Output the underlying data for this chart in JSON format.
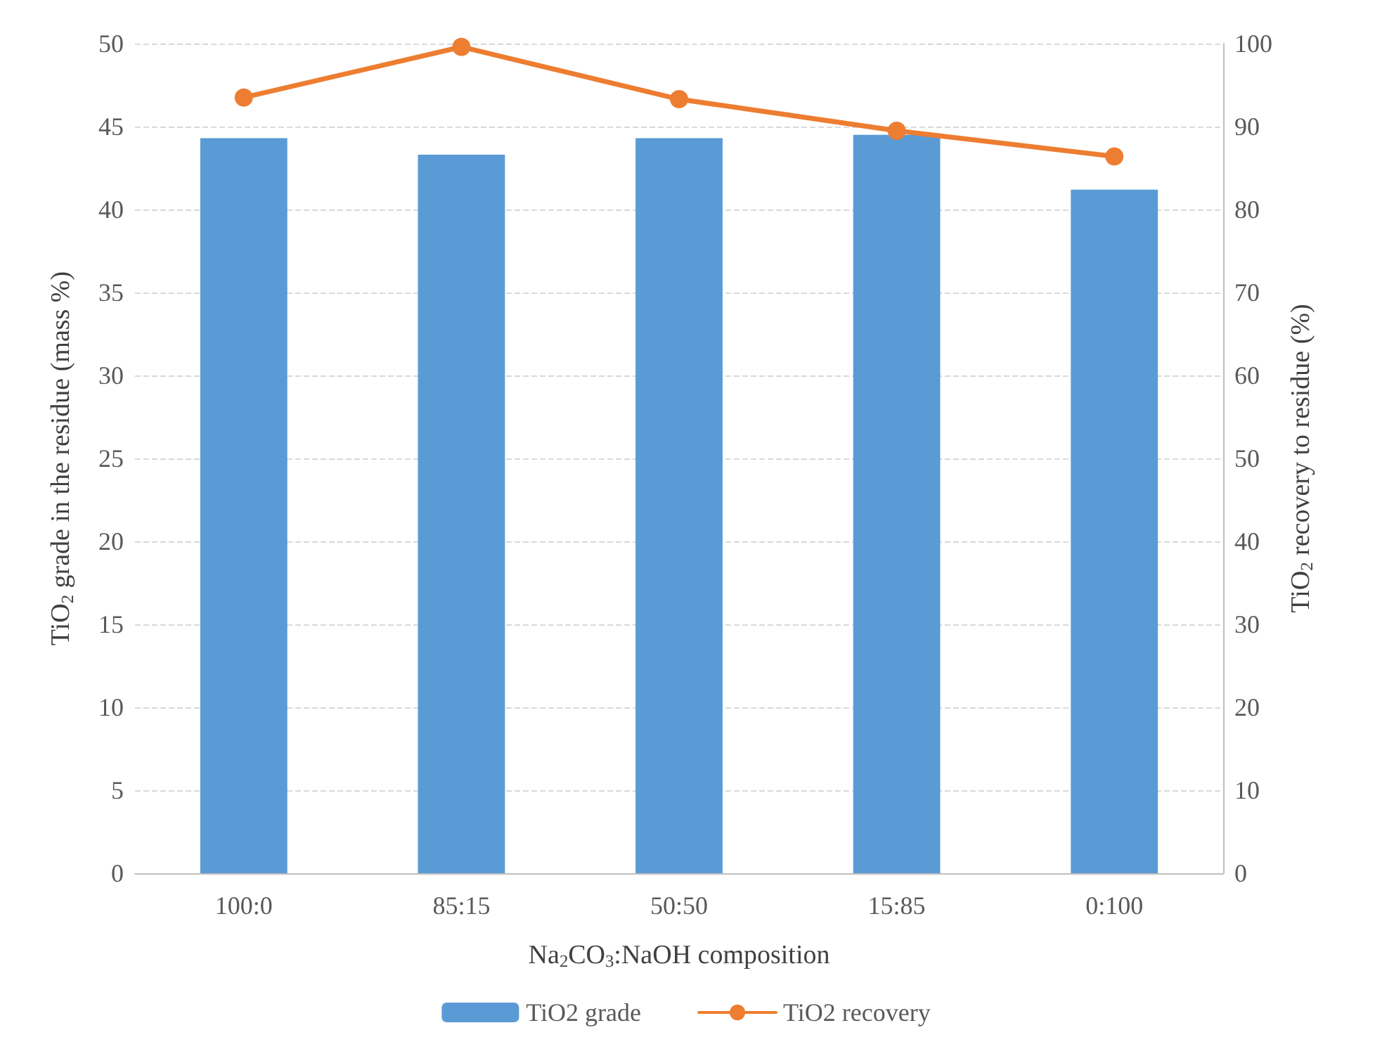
{
  "chart_data": {
    "type": "bar",
    "xlabel": "Na$_{2}$CO$_{3}$:NaOH composition",
    "ylabel": "TiO$_{2}$ grade in the residue (mass %)",
    "y2label": "TiO$_{2}$ recovery to residue (%)",
    "categories": [
      "100:0",
      "85:15",
      "50:50",
      "15:85",
      "0:100"
    ],
    "series": [
      {
        "name": "TiO2 grade",
        "color": "#5b9bd5",
        "values": [
          44.3,
          43.3,
          44.3,
          44.5,
          41.2
        ]
      },
      {
        "name": "TiO2 recovery",
        "type": "line",
        "axis": "y2",
        "color": "#ed7d31",
        "values": [
          93.5,
          99.6,
          93.3,
          89.5,
          86.4
        ]
      }
    ],
    "ylim": [
      0,
      50
    ],
    "yticks": [
      0,
      5,
      10,
      15,
      20,
      25,
      30,
      35,
      40,
      45,
      50
    ],
    "y2lim": [
      0,
      100
    ],
    "y2ticks": [
      0,
      10,
      20,
      30,
      40,
      50,
      60,
      70,
      80,
      90,
      100
    ],
    "grid": "y",
    "legend": "bottom",
    "marker": "circle",
    "line_style": "solid"
  }
}
